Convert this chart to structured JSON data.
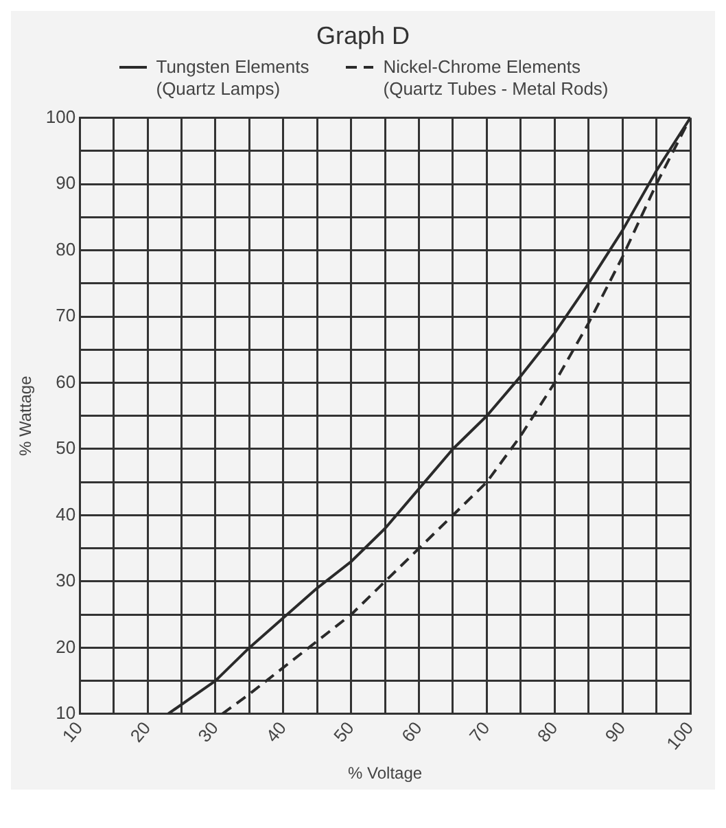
{
  "chart_data": {
    "type": "line",
    "title": "Graph D",
    "xlabel": "% Voltage",
    "ylabel": "% Wattage",
    "xlim": [
      10,
      100
    ],
    "ylim": [
      10,
      100
    ],
    "xticks": [
      10,
      {
        "value": 15,
        "label": null
      },
      20,
      {
        "value": 25,
        "label": null
      },
      30,
      {
        "value": 35,
        "label": null
      },
      40,
      {
        "value": 45,
        "label": null
      },
      50,
      {
        "value": 55,
        "label": null
      },
      60,
      {
        "value": 65,
        "label": null
      },
      70,
      {
        "value": 75,
        "label": null
      },
      80,
      {
        "value": 85,
        "label": null
      },
      90,
      {
        "value": 95,
        "label": null
      },
      100
    ],
    "yticks": [
      10,
      {
        "value": 15,
        "label": null
      },
      20,
      {
        "value": 25,
        "label": null
      },
      30,
      {
        "value": 35,
        "label": null
      },
      40,
      {
        "value": 45,
        "label": null
      },
      50,
      {
        "value": 55,
        "label": null
      },
      60,
      {
        "value": 65,
        "label": null
      },
      70,
      {
        "value": 75,
        "label": null
      },
      80,
      {
        "value": 85,
        "label": null
      },
      90,
      {
        "value": 95,
        "label": null
      },
      100
    ],
    "grid": true,
    "legend": "top",
    "marker": "none",
    "series": [
      {
        "name": "Tungsten Elements\n(Quartz Lamps)",
        "color": "#2a2a2a",
        "line_style": "solid",
        "x": [
          23,
          30,
          35,
          40,
          45,
          50,
          55,
          60,
          65,
          70,
          75,
          80,
          85,
          90,
          95,
          100
        ],
        "values": [
          10,
          15,
          20,
          24.5,
          29,
          33,
          38,
          44,
          50,
          55,
          61,
          67.5,
          75,
          83,
          92,
          100
        ]
      },
      {
        "name": "Nickel-Chrome Elements\n(Quartz Tubes - Metal Rods)",
        "color": "#2a2a2a",
        "line_style": "dashed",
        "x": [
          31,
          35,
          40,
          45,
          50,
          55,
          60,
          65,
          70,
          75,
          80,
          85,
          90,
          95,
          100
        ],
        "values": [
          10,
          13,
          17,
          21,
          25,
          30,
          35,
          40,
          45,
          52,
          60,
          69,
          79,
          90,
          100
        ]
      }
    ]
  }
}
